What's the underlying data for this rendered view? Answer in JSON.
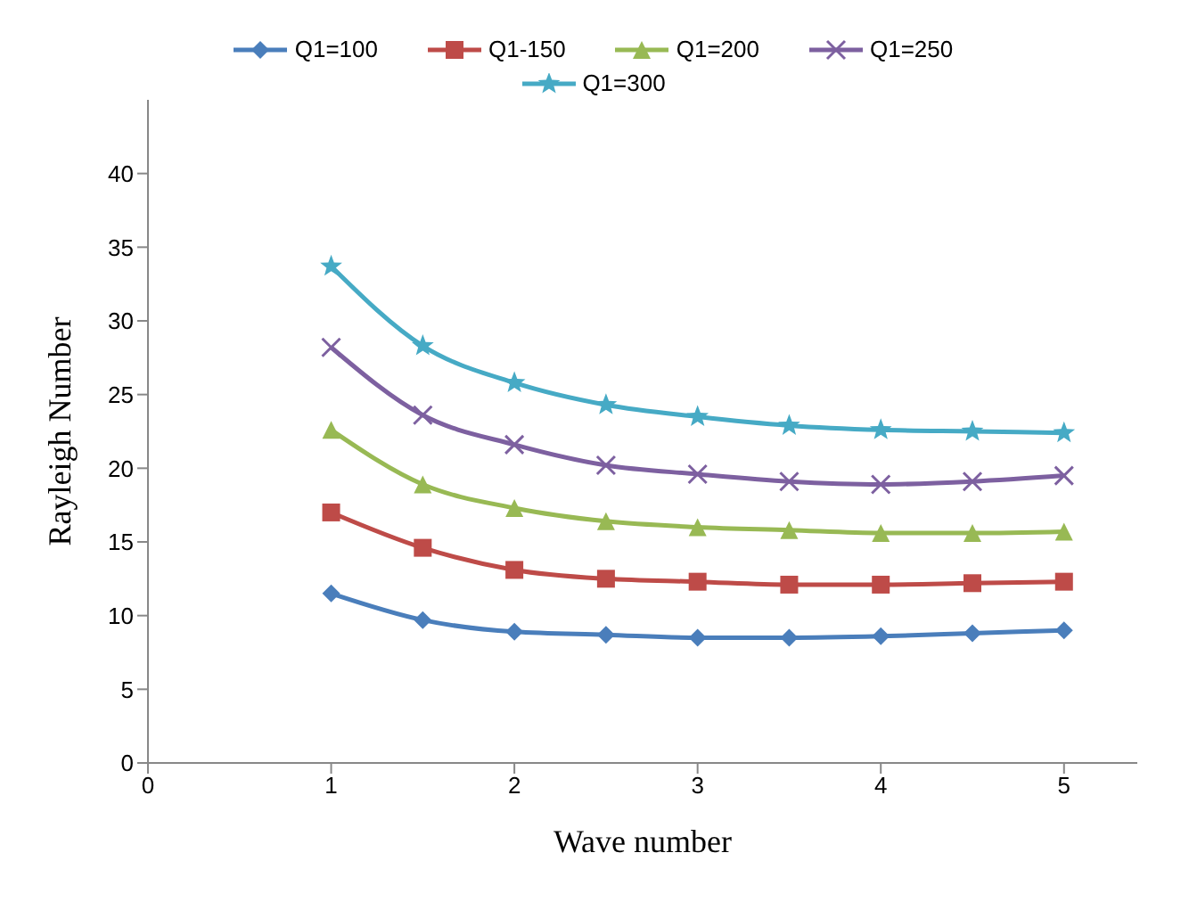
{
  "chart_data": {
    "type": "line",
    "xlabel": "Wave  number",
    "ylabel": "Rayleigh Number",
    "x": [
      1,
      1.5,
      2,
      2.5,
      3,
      3.5,
      4,
      4.5,
      5
    ],
    "xlim": [
      0,
      5.4
    ],
    "xticks": [
      0,
      1,
      2,
      3,
      4,
      5
    ],
    "ylim": [
      0,
      45
    ],
    "yticks": [
      0,
      5,
      10,
      15,
      20,
      25,
      30,
      35,
      40
    ],
    "grid": false,
    "legend": "top",
    "series": [
      {
        "name": "Q1=100",
        "color": "#4a7ebb",
        "marker": "diamond",
        "values": [
          11.5,
          9.7,
          8.9,
          8.7,
          8.5,
          8.5,
          8.6,
          8.8,
          9.0
        ]
      },
      {
        "name": "Q1-150",
        "color": "#be4b48",
        "marker": "square",
        "values": [
          17.0,
          14.6,
          13.1,
          12.5,
          12.3,
          12.1,
          12.1,
          12.2,
          12.3
        ]
      },
      {
        "name": "Q1=200",
        "color": "#98b954",
        "marker": "triangle",
        "values": [
          22.6,
          18.9,
          17.3,
          16.4,
          16.0,
          15.8,
          15.6,
          15.6,
          15.7
        ]
      },
      {
        "name": "Q1=250",
        "color": "#7d60a0",
        "marker": "cross",
        "values": [
          28.2,
          23.6,
          21.6,
          20.2,
          19.6,
          19.1,
          18.9,
          19.1,
          19.5
        ]
      },
      {
        "name": "Q1=300",
        "color": "#46aac5",
        "marker": "star",
        "values": [
          33.7,
          28.3,
          25.8,
          24.3,
          23.5,
          22.9,
          22.6,
          22.5,
          22.4
        ]
      }
    ]
  }
}
